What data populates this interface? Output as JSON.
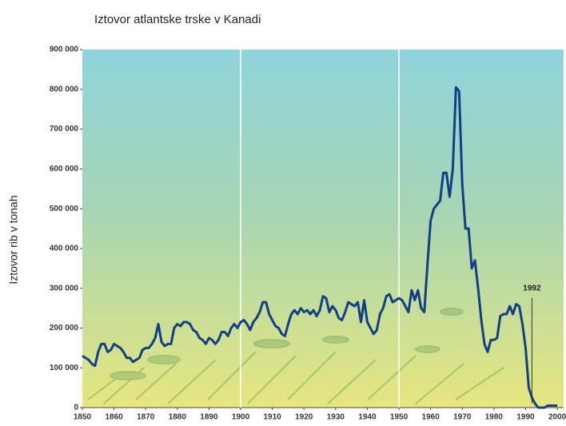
{
  "chart_data": {
    "type": "line",
    "title": "Iztovor atlantske trske v Kanadi",
    "y_label": "Iztovor rib v tonah",
    "x": [
      1850,
      1851,
      1852,
      1853,
      1854,
      1855,
      1856,
      1857,
      1858,
      1859,
      1860,
      1861,
      1862,
      1863,
      1864,
      1865,
      1866,
      1867,
      1868,
      1869,
      1870,
      1871,
      1872,
      1873,
      1874,
      1875,
      1876,
      1877,
      1878,
      1879,
      1880,
      1881,
      1882,
      1883,
      1884,
      1885,
      1886,
      1887,
      1888,
      1889,
      1890,
      1891,
      1892,
      1893,
      1894,
      1895,
      1896,
      1897,
      1898,
      1899,
      1900,
      1901,
      1902,
      1903,
      1904,
      1905,
      1906,
      1907,
      1908,
      1909,
      1910,
      1911,
      1912,
      1913,
      1914,
      1915,
      1916,
      1917,
      1918,
      1919,
      1920,
      1921,
      1922,
      1923,
      1924,
      1925,
      1926,
      1927,
      1928,
      1929,
      1930,
      1931,
      1932,
      1933,
      1934,
      1935,
      1936,
      1937,
      1938,
      1939,
      1940,
      1941,
      1942,
      1943,
      1944,
      1945,
      1946,
      1947,
      1948,
      1949,
      1950,
      1951,
      1952,
      1953,
      1954,
      1955,
      1956,
      1957,
      1958,
      1959,
      1960,
      1961,
      1962,
      1963,
      1964,
      1965,
      1966,
      1967,
      1968,
      1969,
      1970,
      1971,
      1972,
      1973,
      1974,
      1975,
      1976,
      1977,
      1978,
      1979,
      1980,
      1981,
      1982,
      1983,
      1984,
      1985,
      1986,
      1987,
      1988,
      1989,
      1990,
      1991,
      1992,
      1993,
      1994,
      1995,
      1996,
      1997,
      1998,
      1999,
      2000
    ],
    "series": [
      {
        "color": "#123f86",
        "values": [
          130000,
          125000,
          120000,
          110000,
          105000,
          140000,
          160000,
          160000,
          140000,
          145000,
          160000,
          155000,
          150000,
          140000,
          125000,
          125000,
          115000,
          120000,
          125000,
          145000,
          150000,
          150000,
          160000,
          175000,
          210000,
          165000,
          155000,
          160000,
          160000,
          200000,
          210000,
          205000,
          215000,
          215000,
          210000,
          195000,
          190000,
          175000,
          170000,
          160000,
          175000,
          170000,
          160000,
          170000,
          190000,
          190000,
          180000,
          200000,
          210000,
          200000,
          215000,
          220000,
          210000,
          195000,
          215000,
          225000,
          240000,
          265000,
          265000,
          235000,
          220000,
          205000,
          200000,
          185000,
          180000,
          210000,
          235000,
          245000,
          235000,
          250000,
          240000,
          245000,
          235000,
          245000,
          230000,
          245000,
          280000,
          275000,
          240000,
          255000,
          245000,
          225000,
          220000,
          240000,
          265000,
          260000,
          255000,
          265000,
          215000,
          270000,
          215000,
          200000,
          185000,
          195000,
          235000,
          250000,
          280000,
          285000,
          265000,
          270000,
          275000,
          270000,
          255000,
          240000,
          295000,
          270000,
          295000,
          250000,
          240000,
          360000,
          470000,
          500000,
          510000,
          520000,
          590000,
          590000,
          530000,
          600000,
          805000,
          795000,
          560000,
          450000,
          450000,
          350000,
          370000,
          300000,
          220000,
          160000,
          140000,
          170000,
          170000,
          175000,
          230000,
          235000,
          235000,
          255000,
          235000,
          260000,
          255000,
          210000,
          150000,
          50000,
          25000,
          10000,
          0,
          0,
          0,
          5000,
          5000,
          5000,
          5000
        ]
      }
    ],
    "xlim": [
      1850,
      2002
    ],
    "ylim": [
      0,
      900000
    ],
    "xticks": [
      1850,
      1860,
      1870,
      1880,
      1890,
      1900,
      1910,
      1920,
      1930,
      1940,
      1950,
      1960,
      1970,
      1980,
      1990,
      2000
    ],
    "yticks": [
      0,
      {
        "value": 100000,
        "label": "100 000"
      },
      {
        "value": 200000,
        "label": "200 000"
      },
      {
        "value": 300000,
        "label": "300 000"
      },
      {
        "value": 400000,
        "label": "400 000"
      },
      {
        "value": 500000,
        "label": "500 000"
      },
      {
        "value": 600000,
        "label": "600 000"
      },
      {
        "value": 700000,
        "label": "700 000"
      },
      {
        "value": 800000,
        "label": "800 000"
      },
      {
        "value": 900000,
        "label": "900 000"
      }
    ],
    "grid_x": [
      1900,
      1950
    ],
    "annotations": [
      {
        "text": "1992",
        "x": 1992,
        "y": 300000
      }
    ]
  }
}
